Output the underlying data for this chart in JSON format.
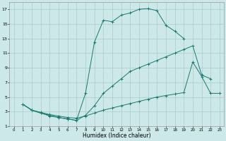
{
  "xlabel": "Humidex (Indice chaleur)",
  "bg_color": "#cce8e8",
  "grid_color": "#aacccc",
  "line_color": "#1a7a6e",
  "xlim": [
    -0.5,
    23.5
  ],
  "ylim": [
    1,
    18
  ],
  "xticks": [
    0,
    1,
    2,
    3,
    4,
    5,
    6,
    7,
    8,
    9,
    10,
    11,
    12,
    13,
    14,
    15,
    16,
    17,
    18,
    19,
    20,
    21,
    22,
    23
  ],
  "yticks": [
    1,
    3,
    5,
    7,
    9,
    11,
    13,
    15,
    17
  ],
  "c1x": [
    1,
    2,
    3,
    4,
    5,
    6,
    7,
    8,
    9,
    10,
    11,
    12,
    13,
    14,
    15,
    16,
    17,
    18,
    19
  ],
  "c1y": [
    4,
    3.2,
    2.8,
    2.4,
    2.2,
    2.0,
    1.8,
    5.5,
    12.5,
    15.5,
    15.3,
    16.2,
    16.5,
    17.0,
    17.1,
    16.8,
    14.8,
    14.0,
    13.0
  ],
  "c2x": [
    1,
    2,
    3,
    4,
    5,
    6,
    7,
    8,
    9,
    10,
    11,
    12,
    13,
    14,
    15,
    16,
    17,
    18,
    19,
    20,
    21,
    22
  ],
  "c2y": [
    4,
    3.2,
    2.8,
    2.5,
    2.2,
    2.0,
    1.8,
    2.5,
    3.8,
    5.5,
    6.5,
    7.5,
    8.5,
    9.0,
    9.5,
    10.0,
    10.5,
    11.0,
    11.5,
    12.0,
    8.0,
    7.5
  ],
  "c3x": [
    1,
    2,
    3,
    4,
    5,
    6,
    7,
    8,
    9,
    10,
    11,
    12,
    13,
    14,
    15,
    16,
    17,
    18,
    19,
    20,
    21,
    22,
    23
  ],
  "c3y": [
    4,
    3.2,
    2.9,
    2.6,
    2.4,
    2.2,
    2.1,
    2.4,
    2.8,
    3.2,
    3.5,
    3.8,
    4.1,
    4.4,
    4.7,
    5.0,
    5.2,
    5.4,
    5.6,
    9.8,
    7.8,
    5.5,
    5.5
  ]
}
